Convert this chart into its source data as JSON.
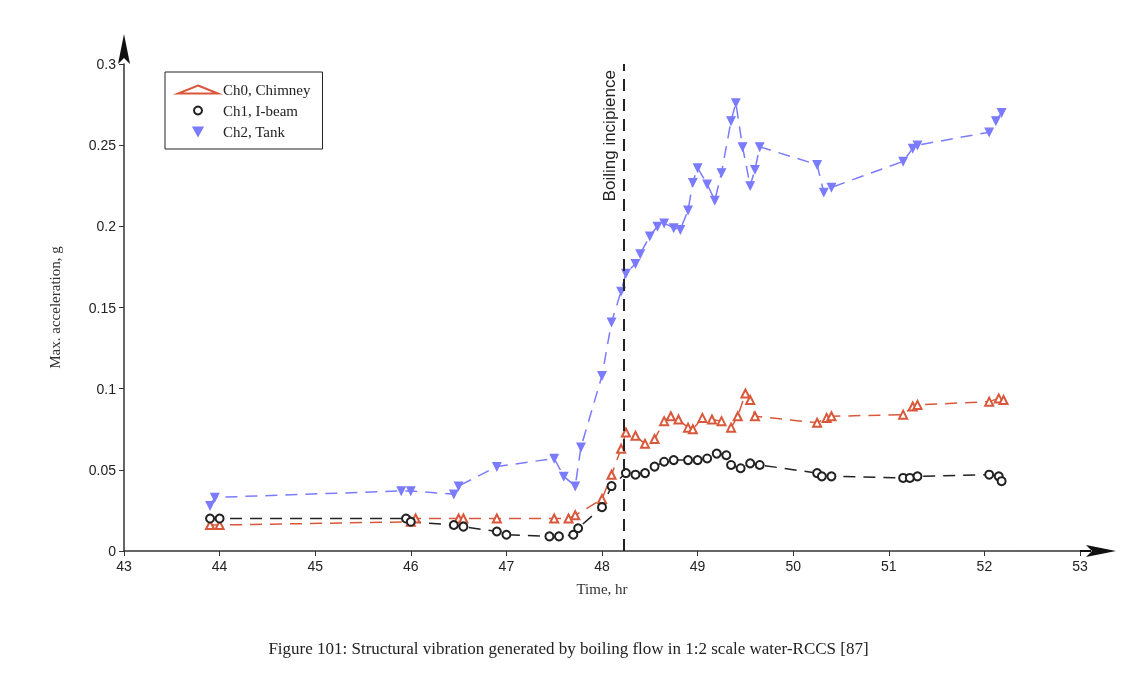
{
  "chart_data": {
    "type": "line",
    "xlabel": "Time, hr",
    "ylabel": "Max. acceleration, g",
    "xlim": [
      43,
      53
    ],
    "xticks": [
      43,
      44,
      45,
      46,
      47,
      48,
      49,
      50,
      51,
      52,
      53
    ],
    "ylim": [
      0,
      0.3
    ],
    "yticks": [
      0,
      0.05,
      0.1,
      0.15,
      0.2,
      0.25,
      0.3
    ],
    "grid": false,
    "legend": "top left",
    "line_style": "dashed",
    "ref_lines": [
      {
        "axis": "x",
        "value": 48.23,
        "label": "Boiling incipience",
        "color": "#222222",
        "line_style": "dashed"
      }
    ],
    "annotations": [
      "Figure 101: Structural vibration generated by boiling flow in 1:2 scale water-RCCS [87]"
    ],
    "series": [
      {
        "name": "Ch0, Chimney",
        "color": "#d9583b",
        "marker": "triangle",
        "x": [
          43.9,
          44.0,
          46.0,
          46.05,
          46.5,
          46.55,
          46.9,
          47.5,
          47.65,
          47.72,
          48.0,
          48.1,
          48.2,
          48.25,
          48.35,
          48.45,
          48.55,
          48.65,
          48.72,
          48.8,
          48.9,
          48.95,
          49.05,
          49.15,
          49.25,
          49.35,
          49.42,
          49.5,
          49.55,
          49.6,
          50.25,
          50.35,
          50.4,
          51.15,
          51.25,
          51.3,
          52.05,
          52.15,
          52.2
        ],
        "values": [
          0.016,
          0.016,
          0.018,
          0.02,
          0.02,
          0.02,
          0.02,
          0.02,
          0.02,
          0.022,
          0.032,
          0.047,
          0.063,
          0.073,
          0.071,
          0.066,
          0.069,
          0.08,
          0.083,
          0.081,
          0.076,
          0.075,
          0.082,
          0.081,
          0.08,
          0.076,
          0.083,
          0.097,
          0.093,
          0.083,
          0.079,
          0.082,
          0.083,
          0.084,
          0.089,
          0.09,
          0.092,
          0.094,
          0.093
        ]
      },
      {
        "name": "Ch1, I-beam",
        "color": "#222222",
        "marker": "circle",
        "x": [
          43.9,
          44.0,
          45.95,
          46.0,
          46.45,
          46.55,
          46.9,
          47.0,
          47.45,
          47.55,
          47.7,
          47.75,
          48.0,
          48.1,
          48.25,
          48.35,
          48.45,
          48.55,
          48.65,
          48.75,
          48.9,
          49.0,
          49.1,
          49.2,
          49.3,
          49.35,
          49.45,
          49.55,
          49.65,
          50.25,
          50.3,
          50.4,
          51.15,
          51.22,
          51.3,
          52.05,
          52.15,
          52.18
        ],
        "values": [
          0.02,
          0.02,
          0.02,
          0.018,
          0.016,
          0.015,
          0.012,
          0.01,
          0.009,
          0.009,
          0.01,
          0.014,
          0.027,
          0.04,
          0.048,
          0.047,
          0.048,
          0.052,
          0.055,
          0.056,
          0.056,
          0.056,
          0.057,
          0.06,
          0.059,
          0.053,
          0.051,
          0.054,
          0.053,
          0.048,
          0.046,
          0.046,
          0.045,
          0.045,
          0.046,
          0.047,
          0.046,
          0.043
        ]
      },
      {
        "name": "Ch2, Tank",
        "color": "#7b7bff",
        "marker": "triangle-down",
        "x": [
          43.9,
          43.95,
          45.9,
          46.0,
          46.45,
          46.5,
          46.9,
          47.5,
          47.6,
          47.72,
          47.78,
          48.0,
          48.1,
          48.2,
          48.25,
          48.35,
          48.4,
          48.5,
          48.58,
          48.65,
          48.75,
          48.82,
          48.9,
          48.95,
          49.0,
          49.1,
          49.18,
          49.25,
          49.35,
          49.4,
          49.47,
          49.55,
          49.6,
          49.65,
          50.25,
          50.32,
          50.4,
          51.15,
          51.25,
          51.3,
          52.05,
          52.12,
          52.18
        ],
        "values": [
          0.028,
          0.033,
          0.037,
          0.037,
          0.035,
          0.04,
          0.052,
          0.057,
          0.046,
          0.04,
          0.064,
          0.108,
          0.141,
          0.16,
          0.171,
          0.177,
          0.183,
          0.194,
          0.2,
          0.202,
          0.199,
          0.198,
          0.21,
          0.227,
          0.236,
          0.226,
          0.216,
          0.233,
          0.265,
          0.276,
          0.249,
          0.225,
          0.235,
          0.249,
          0.238,
          0.221,
          0.224,
          0.24,
          0.248,
          0.25,
          0.258,
          0.265,
          0.27
        ]
      }
    ]
  }
}
